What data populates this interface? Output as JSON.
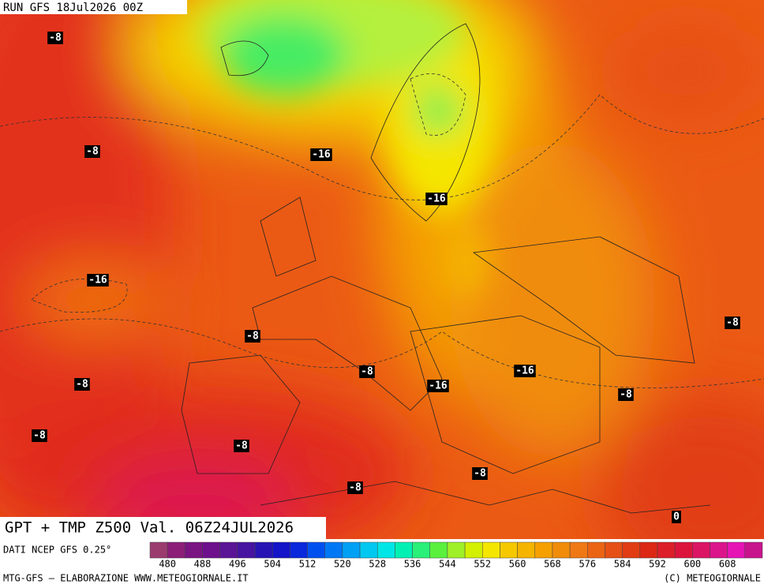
{
  "header": {
    "run": "RUN GFS 18Jul2026 00Z",
    "title": "GPT + TMP Z500 Val. 06Z24JUL2026"
  },
  "isotherm_labels": [
    -8,
    -8,
    -16,
    -16,
    -16,
    -8,
    -8,
    -8,
    -16,
    -8,
    -16,
    -8,
    -8,
    -8,
    -8,
    -8,
    0
  ],
  "legend": {
    "source": "DATI NCEP GFS 0.25°",
    "colors": [
      "#9b3c6e",
      "#8c1e78",
      "#7a1482",
      "#6e0f8c",
      "#5a1496",
      "#4614a0",
      "#2814b4",
      "#1414c8",
      "#0a28dc",
      "#0050f0",
      "#0078f5",
      "#00a0f5",
      "#00c8f0",
      "#00e6e6",
      "#00f0b4",
      "#28f078",
      "#5af03c",
      "#a0f028",
      "#d2f000",
      "#f5e600",
      "#f5c800",
      "#f5b400",
      "#f5a000",
      "#f08c0a",
      "#f07814",
      "#eb6414",
      "#e65014",
      "#e13c14",
      "#dc2814",
      "#dc1e28",
      "#dc143c",
      "#dc1464",
      "#dc148c",
      "#e614b4",
      "#c8148c"
    ],
    "ticks": [
      480,
      488,
      496,
      504,
      512,
      520,
      528,
      536,
      544,
      552,
      560,
      568,
      576,
      584,
      592,
      600,
      608
    ]
  },
  "footer": {
    "left": "MTG-GFS — ELABORAZIONE WWW.METEOGIORNALE.IT",
    "right": "(C) METEOGIORNALE"
  }
}
